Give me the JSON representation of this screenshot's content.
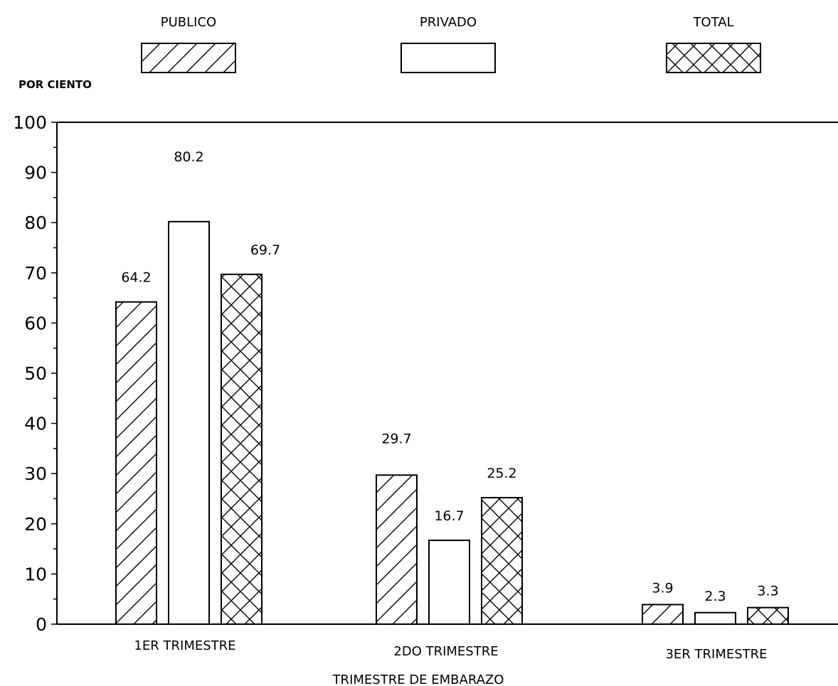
{
  "chart_data": {
    "type": "bar",
    "ylabel": "POR CIENTO",
    "xlabel": "TRIMESTRE DE EMBARAZO",
    "ylim": [
      0,
      100
    ],
    "yticks": [
      0,
      10,
      20,
      30,
      40,
      50,
      60,
      70,
      80,
      90,
      100
    ],
    "categories": [
      "1ER TRIMESTRE",
      "2DO TRIMESTRE",
      "3ER TRIMESTRE"
    ],
    "series": [
      {
        "name": "PUBLICO",
        "pattern": "diagonal",
        "values": [
          64.2,
          29.7,
          3.9
        ],
        "labels": [
          "64.2",
          "29.7",
          "3.9"
        ]
      },
      {
        "name": "PRIVADO",
        "pattern": "none",
        "values": [
          80.2,
          16.7,
          2.3
        ],
        "labels": [
          "80.2",
          "16.7",
          "2.3"
        ]
      },
      {
        "name": "TOTAL",
        "pattern": "crosshatch",
        "values": [
          69.7,
          25.2,
          3.3
        ],
        "labels": [
          "69.7",
          "25.2",
          "3.3"
        ]
      }
    ],
    "legend_position": "top",
    "grid": false,
    "colors": {
      "ink": "#000000",
      "background": "#ffffff"
    }
  }
}
